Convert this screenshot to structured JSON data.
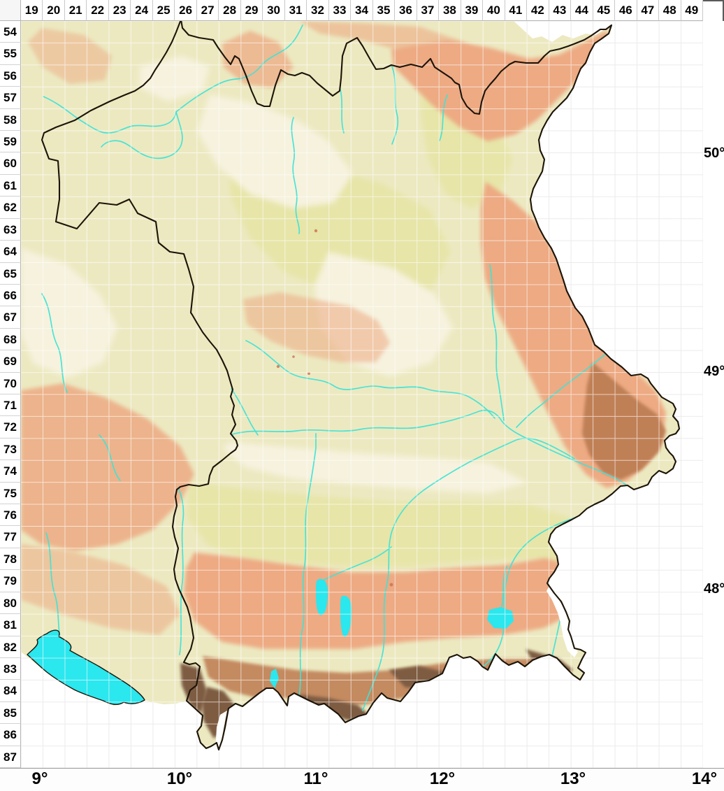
{
  "map_grid": {
    "columns": [
      "19",
      "20",
      "21",
      "22",
      "23",
      "24",
      "25",
      "26",
      "27",
      "28",
      "29",
      "30",
      "31",
      "32",
      "33",
      "34",
      "35",
      "36",
      "37",
      "38",
      "39",
      "40",
      "41",
      "42",
      "43",
      "44",
      "45",
      "46",
      "47",
      "48",
      "49"
    ],
    "rows": [
      "54",
      "55",
      "56",
      "57",
      "58",
      "59",
      "60",
      "61",
      "62",
      "63",
      "64",
      "65",
      "66",
      "67",
      "68",
      "69",
      "70",
      "71",
      "72",
      "73",
      "74",
      "75",
      "76",
      "77",
      "78",
      "79",
      "80",
      "81",
      "82",
      "83",
      "84",
      "85",
      "86",
      "87"
    ]
  },
  "axis_labels": {
    "longitude": [
      "9°",
      "10°",
      "11°",
      "12°",
      "13°",
      "14°"
    ],
    "latitude": [
      "50°",
      "49°",
      "48°"
    ]
  },
  "palette": {
    "lowland": "#ece9c1",
    "plain": "#e7e5a8",
    "valley": "#f6f2de",
    "hills": "#edaa83",
    "uplands": "#c08057",
    "alpine": "#7e5b43",
    "water": "#2be7ee",
    "river": "#3fe3d6",
    "boundary": "#1c1408",
    "grid_on_terrain": "#ffffff",
    "grid_on_background": "#ebebeb"
  }
}
